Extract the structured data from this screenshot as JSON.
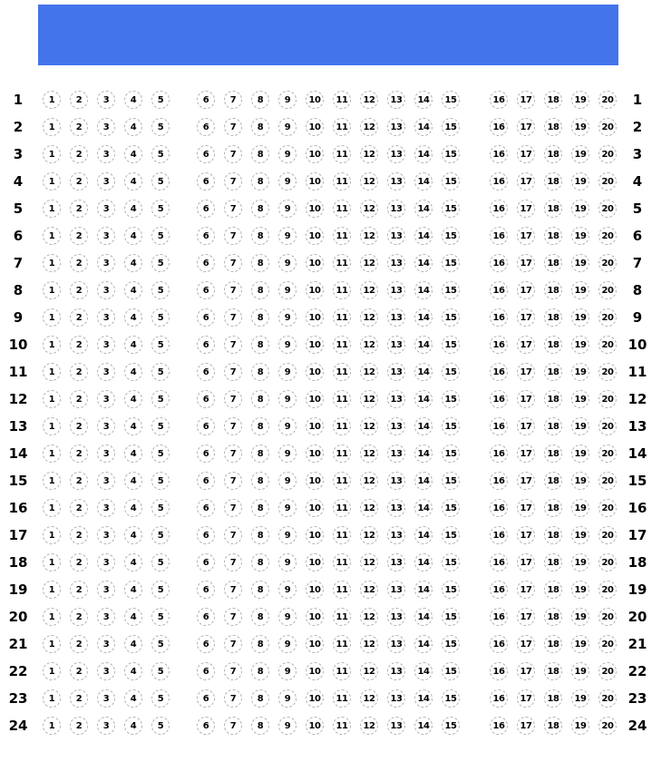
{
  "banner": {
    "color": "#4374EA"
  },
  "sheet": {
    "row_numbers": [
      "1",
      "2",
      "3",
      "4",
      "5",
      "6",
      "7",
      "8",
      "9",
      "10",
      "11",
      "12",
      "13",
      "14",
      "15",
      "16",
      "17",
      "18",
      "19",
      "20",
      "21",
      "22",
      "23",
      "24"
    ],
    "option_groups": [
      [
        "1",
        "2",
        "3",
        "4",
        "5"
      ],
      [
        "6",
        "7",
        "8",
        "9",
        "10",
        "11",
        "12",
        "13",
        "14",
        "15"
      ],
      [
        "16",
        "17",
        "18",
        "19",
        "20"
      ]
    ],
    "bubble_border_color": "#b0b0b0"
  }
}
